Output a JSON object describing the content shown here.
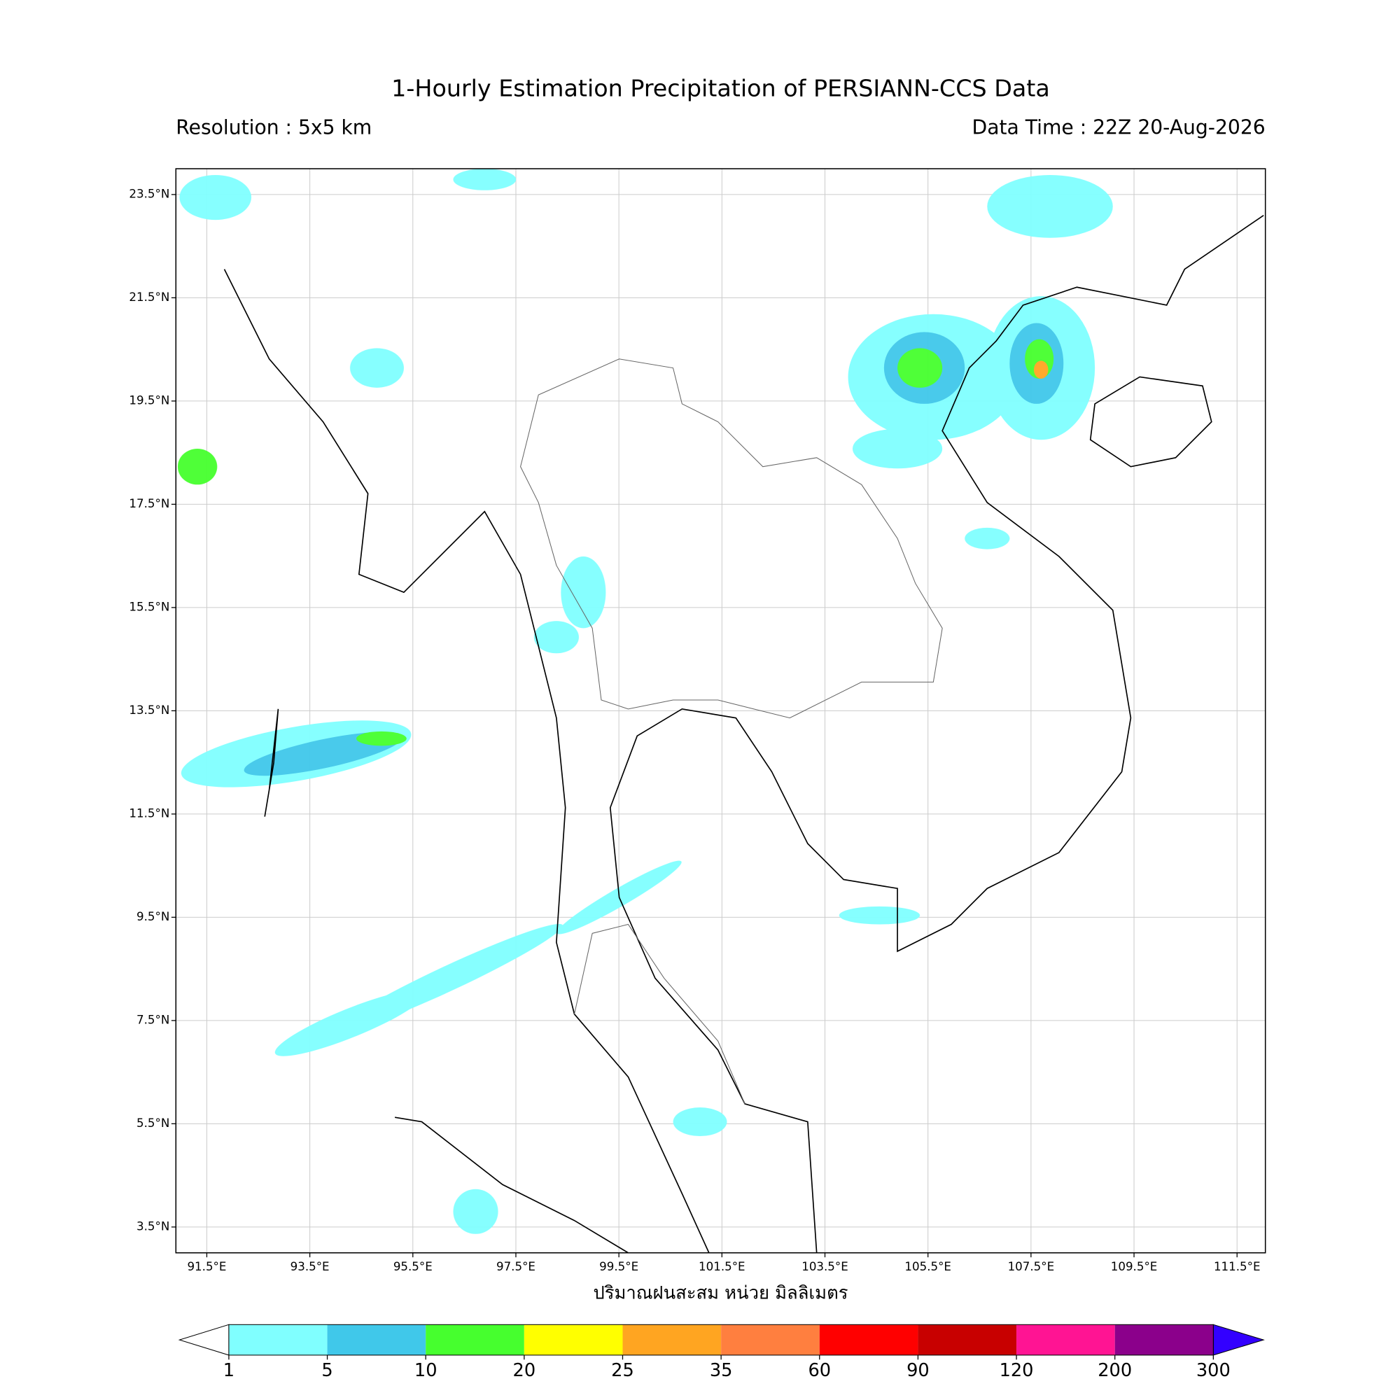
{
  "header": {
    "title": "1-Hourly Estimation Precipitation of PERSIANN-CCS Data",
    "resolution": "Resolution : 5x5 km",
    "data_time": "Data Time : 22Z 20-Aug-2026"
  },
  "map": {
    "xlim": [
      90.9,
      112.05
    ],
    "ylim": [
      3.0,
      24.0
    ],
    "grid": true,
    "xticks": [
      {
        "value": 91.5,
        "label": "91.5°E"
      },
      {
        "value": 93.5,
        "label": "93.5°E"
      },
      {
        "value": 95.5,
        "label": "95.5°E"
      },
      {
        "value": 97.5,
        "label": "97.5°E"
      },
      {
        "value": 99.5,
        "label": "99.5°E"
      },
      {
        "value": 101.5,
        "label": "101.5°E"
      },
      {
        "value": 103.5,
        "label": "103.5°E"
      },
      {
        "value": 105.5,
        "label": "105.5°E"
      },
      {
        "value": 107.5,
        "label": "107.5°E"
      },
      {
        "value": 109.5,
        "label": "109.5°E"
      },
      {
        "value": 111.5,
        "label": "111.5°E"
      }
    ],
    "yticks": [
      {
        "value": 23.5,
        "label": "23.5°N"
      },
      {
        "value": 21.5,
        "label": "21.5°N"
      },
      {
        "value": 19.5,
        "label": "19.5°N"
      },
      {
        "value": 17.5,
        "label": "17.5°N"
      },
      {
        "value": 15.5,
        "label": "15.5°N"
      },
      {
        "value": 13.5,
        "label": "13.5°N"
      },
      {
        "value": 11.5,
        "label": "11.5°N"
      },
      {
        "value": 9.5,
        "label": "9.5°N"
      },
      {
        "value": 7.5,
        "label": "7.5°N"
      },
      {
        "value": 5.5,
        "label": "5.5°N"
      },
      {
        "value": 3.5,
        "label": "3.5°N"
      }
    ]
  },
  "colorbar": {
    "label": "ปริมาณฝนสะสม หน่วย มิลลิเมตร",
    "bounds": [
      1,
      5,
      10,
      20,
      25,
      35,
      60,
      90,
      120,
      200,
      300
    ],
    "colors": [
      "#80ffff",
      "#40c8ea",
      "#46ff2e",
      "#ffff00",
      "#ffa521",
      "#ff7f3f",
      "#ff0000",
      "#c80000",
      "#ff1493",
      "#8b008b"
    ],
    "under_color": "#ffffff",
    "over_color": "#3300ff"
  }
}
